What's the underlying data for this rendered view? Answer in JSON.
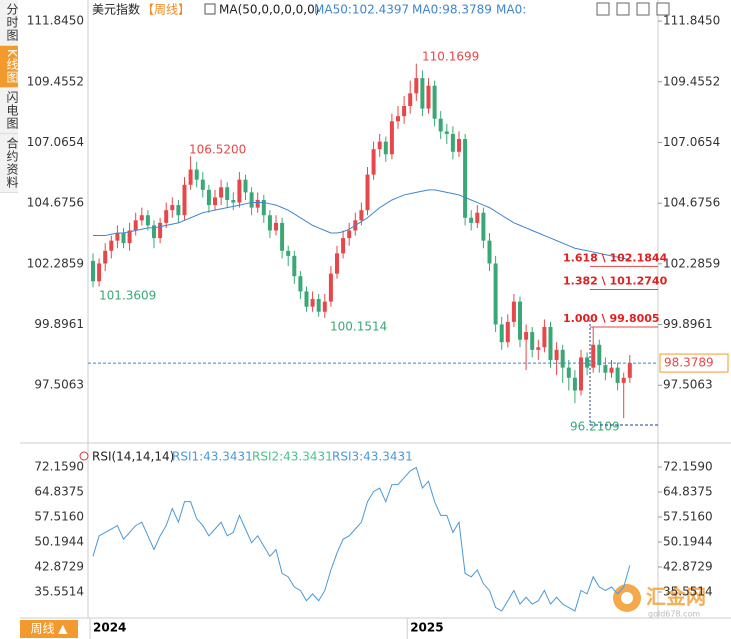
{
  "sidebar": {
    "tabs": [
      "分时图",
      "K线图",
      "闪电图",
      "合约资料"
    ],
    "active": 1
  },
  "chart_data": [
    {
      "type": "candlestick",
      "title": "美元指数",
      "period": "【周线】",
      "indicator": "MA(50,0,0,0,0,0)",
      "legend_texts": [
        "MA50:102.4397",
        "MA0:98.3789",
        "MA0:"
      ],
      "up_color": "#e8474a",
      "down_color": "#3aa876",
      "categories": [
        "2024",
        null,
        null,
        null,
        null,
        null,
        null,
        null,
        null,
        null,
        null,
        null,
        null,
        null,
        null,
        null,
        null,
        null,
        null,
        null,
        null,
        null,
        null,
        null,
        null,
        null,
        null,
        null,
        null,
        null,
        null,
        null,
        null,
        null,
        null,
        null,
        null,
        null,
        null,
        null,
        null,
        null,
        null,
        null,
        null,
        null,
        null,
        null,
        null,
        null,
        null,
        null,
        "2025",
        null,
        null,
        null,
        null,
        null,
        null,
        null,
        null,
        null,
        null,
        null,
        null,
        null,
        null,
        null,
        null,
        null,
        null,
        null,
        null,
        null,
        null,
        null,
        null,
        null,
        null,
        null,
        null,
        null,
        null,
        null,
        null,
        null,
        null,
        null,
        null
      ],
      "ohlc": [
        [
          102.4,
          102.7,
          101.3609,
          101.6
        ],
        [
          101.6,
          102.5,
          101.4,
          102.3
        ],
        [
          102.3,
          103.1,
          102.0,
          102.8
        ],
        [
          102.8,
          103.4,
          102.5,
          103.2
        ],
        [
          103.2,
          103.8,
          102.9,
          103.5
        ],
        [
          103.5,
          103.7,
          102.9,
          103.1
        ],
        [
          103.1,
          103.9,
          102.8,
          103.6
        ],
        [
          103.6,
          104.3,
          103.4,
          104.0
        ],
        [
          104.0,
          104.5,
          103.8,
          104.2
        ],
        [
          104.2,
          104.4,
          103.6,
          103.8
        ],
        [
          103.8,
          104.0,
          102.9,
          103.3
        ],
        [
          103.3,
          104.1,
          103.1,
          103.9
        ],
        [
          103.9,
          104.7,
          103.7,
          104.4
        ],
        [
          104.4,
          104.9,
          104.1,
          104.6
        ],
        [
          104.6,
          104.8,
          103.9,
          104.2
        ],
        [
          104.2,
          105.7,
          104.0,
          105.4
        ],
        [
          105.4,
          106.52,
          105.2,
          106.0
        ],
        [
          106.0,
          106.3,
          105.3,
          105.6
        ],
        [
          105.6,
          105.9,
          104.9,
          105.2
        ],
        [
          105.2,
          105.4,
          104.3,
          104.6
        ],
        [
          104.6,
          105.2,
          104.4,
          104.9
        ],
        [
          104.9,
          105.6,
          104.6,
          105.3
        ],
        [
          105.3,
          105.5,
          104.5,
          104.8
        ],
        [
          104.8,
          105.1,
          104.4,
          104.7
        ],
        [
          104.7,
          105.9,
          104.5,
          105.6
        ],
        [
          105.6,
          105.8,
          104.8,
          105.1
        ],
        [
          105.1,
          105.3,
          104.2,
          104.5
        ],
        [
          104.5,
          105.1,
          104.3,
          104.8
        ],
        [
          104.8,
          105.0,
          103.9,
          104.2
        ],
        [
          104.2,
          104.4,
          103.3,
          103.6
        ],
        [
          103.6,
          104.2,
          103.4,
          103.9
        ],
        [
          103.9,
          104.1,
          102.5,
          102.8
        ],
        [
          102.8,
          103.0,
          102.2,
          102.6
        ],
        [
          102.6,
          102.8,
          101.5,
          101.8
        ],
        [
          101.8,
          102.0,
          100.9,
          101.2
        ],
        [
          101.2,
          101.4,
          100.4,
          100.6
        ],
        [
          100.6,
          101.2,
          100.4,
          100.9
        ],
        [
          100.9,
          101.1,
          100.2,
          100.4
        ],
        [
          100.4,
          101.1,
          100.1514,
          100.8
        ],
        [
          100.8,
          102.2,
          100.6,
          101.9
        ],
        [
          101.9,
          103.0,
          101.7,
          102.7
        ],
        [
          102.7,
          103.6,
          102.5,
          103.3
        ],
        [
          103.3,
          103.9,
          103.0,
          103.6
        ],
        [
          103.6,
          104.3,
          103.4,
          104.0
        ],
        [
          104.0,
          104.7,
          103.8,
          104.4
        ],
        [
          104.4,
          106.1,
          104.2,
          105.8
        ],
        [
          105.8,
          107.1,
          105.6,
          106.8
        ],
        [
          106.8,
          107.4,
          106.5,
          107.1
        ],
        [
          107.1,
          107.3,
          106.3,
          106.6
        ],
        [
          106.6,
          108.2,
          106.4,
          107.9
        ],
        [
          107.9,
          108.5,
          107.6,
          108.1
        ],
        [
          108.1,
          108.9,
          107.8,
          108.5
        ],
        [
          108.5,
          109.5,
          108.2,
          109.0
        ],
        [
          109.0,
          110.1699,
          108.7,
          109.6
        ],
        [
          109.6,
          109.9,
          108.1,
          108.4
        ],
        [
          108.4,
          109.6,
          108.2,
          109.3
        ],
        [
          109.3,
          109.5,
          107.7,
          108.0
        ],
        [
          108.0,
          108.3,
          107.2,
          107.5
        ],
        [
          107.5,
          107.8,
          107.0,
          107.4
        ],
        [
          107.4,
          107.7,
          106.4,
          106.7
        ],
        [
          106.7,
          107.5,
          106.5,
          107.2
        ],
        [
          107.2,
          107.4,
          103.8,
          104.1
        ],
        [
          104.1,
          104.4,
          103.6,
          103.9
        ],
        [
          103.9,
          104.6,
          103.7,
          104.3
        ],
        [
          104.3,
          104.5,
          102.9,
          103.2
        ],
        [
          103.2,
          103.5,
          102.0,
          102.3
        ],
        [
          102.3,
          102.6,
          99.6,
          99.9
        ],
        [
          99.9,
          100.2,
          98.9,
          99.2
        ],
        [
          99.2,
          100.3,
          99.0,
          100.0
        ],
        [
          100.0,
          101.1,
          99.8,
          100.8
        ],
        [
          100.8,
          101.0,
          99.0,
          99.3
        ],
        [
          99.3,
          99.9,
          98.1,
          99.6
        ],
        [
          99.6,
          99.8,
          98.6,
          98.9
        ],
        [
          98.9,
          99.3,
          98.5,
          99.0
        ],
        [
          99.0,
          100.1,
          98.8,
          99.8
        ],
        [
          99.8,
          100.0,
          98.2,
          98.5
        ],
        [
          98.5,
          99.2,
          97.9,
          98.9
        ],
        [
          98.9,
          99.1,
          97.6,
          98.2
        ],
        [
          98.2,
          98.5,
          97.3,
          97.8
        ],
        [
          97.8,
          98.1,
          96.8,
          97.3
        ],
        [
          97.3,
          98.9,
          97.1,
          98.6
        ],
        [
          98.6,
          98.8,
          97.9,
          98.2
        ],
        [
          98.2,
          99.8005,
          98.0,
          99.1
        ],
        [
          99.1,
          99.3,
          98.0,
          98.3
        ],
        [
          98.3,
          98.6,
          97.7,
          98.0
        ],
        [
          98.0,
          98.5,
          97.8,
          98.2
        ],
        [
          98.2,
          98.4,
          97.3,
          97.6
        ],
        [
          97.6,
          98.0,
          96.2109,
          97.8
        ],
        [
          97.8,
          98.7,
          97.6,
          98.3789
        ]
      ],
      "series": [
        {
          "color": "#3f86d0",
          "values": [
            103.4,
            103.4,
            103.4,
            103.45,
            103.5,
            103.5,
            103.55,
            103.6,
            103.65,
            103.7,
            103.7,
            103.75,
            103.8,
            103.85,
            103.9,
            104.0,
            104.1,
            104.2,
            104.3,
            104.35,
            104.4,
            104.45,
            104.5,
            104.55,
            104.6,
            104.65,
            104.7,
            104.7,
            104.7,
            104.65,
            104.6,
            104.5,
            104.4,
            104.25,
            104.1,
            103.95,
            103.8,
            103.7,
            103.6,
            103.5,
            103.5,
            103.55,
            103.65,
            103.8,
            103.95,
            104.1,
            104.3,
            104.5,
            104.65,
            104.8,
            104.9,
            105.0,
            105.05,
            105.1,
            105.15,
            105.2,
            105.2,
            105.15,
            105.1,
            105.05,
            105.0,
            104.9,
            104.8,
            104.7,
            104.6,
            104.5,
            104.35,
            104.2,
            104.05,
            103.9,
            103.8,
            103.7,
            103.6,
            103.5,
            103.4,
            103.3,
            103.2,
            103.1,
            103.0,
            102.9,
            102.85,
            102.8,
            102.75,
            102.7,
            102.65,
            102.6,
            102.55,
            102.5,
            102.4397
          ]
        }
      ],
      "ylim": [
        95.35,
        112.36
      ],
      "yticks": [
        {
          "value": 111.845,
          "label": "111.8450"
        },
        109.4552,
        107.0654,
        104.6756,
        102.2859,
        99.8961,
        97.5063
      ],
      "extremes": [
        "110.1699",
        "106.5200",
        "101.3609",
        "100.1514",
        "96.2109"
      ],
      "fib": [
        {
          "value": 102.1844,
          "label": "1.618 \\ 102.1844"
        },
        {
          "value": 101.274,
          "label": "1.382 \\ 101.2740"
        },
        {
          "value": 99.8005,
          "label": "1.000 \\ 99.8005"
        }
      ]
    },
    {
      "type": "line",
      "title": "RSI(14,14,14)",
      "legend_texts": [
        "RSI1:43.3431",
        "RSI2:43.3431",
        "RSI3:43.3431"
      ],
      "series": [
        {
          "color": "#4a9ad8",
          "values": [
            46,
            52,
            53,
            54,
            55,
            51,
            53,
            55,
            56,
            52,
            48,
            52,
            55,
            60,
            56,
            62,
            62,
            57,
            55,
            52,
            54,
            56,
            52,
            53,
            58,
            54,
            50,
            52,
            49,
            46,
            48,
            41,
            40,
            37,
            36,
            33,
            35,
            33,
            36,
            42,
            47,
            51,
            52,
            54,
            56,
            62,
            65,
            66,
            62,
            67,
            67,
            69,
            71,
            72,
            66,
            68,
            62,
            58,
            58,
            53,
            56,
            41,
            40,
            42,
            38,
            36,
            31,
            30,
            33,
            36,
            32,
            34,
            32,
            33,
            36,
            32,
            34,
            32,
            31,
            30,
            36,
            35,
            40,
            37,
            36,
            37,
            35,
            37,
            43.3431
          ]
        }
      ],
      "ylim": [
        28.82,
        75.67
      ],
      "yticks": [
        {
          "value": 72.159,
          "label": "72.1590"
        },
        64.8375,
        {
          "value": 57.516,
          "label": "57.5160"
        },
        50.1944,
        42.8729,
        35.5514
      ]
    }
  ],
  "footer": {
    "period_button": "周线 ▲",
    "watermark": "汇金网",
    "watermark_url": "gold678.com"
  }
}
